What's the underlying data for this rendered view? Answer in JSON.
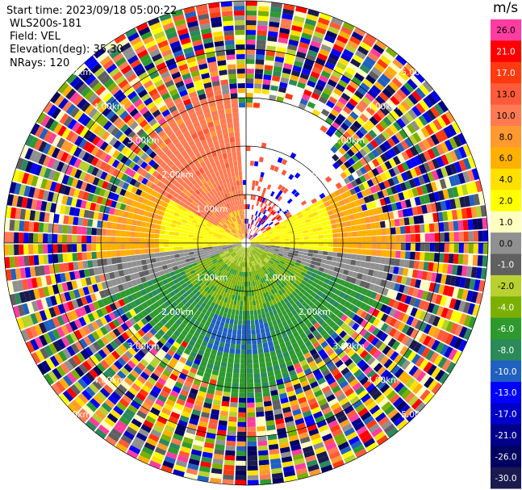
{
  "header": {
    "start_time": "Start time: 2023/09/18 05:00:22",
    "instrument": "WLS200s-181",
    "field": "Field: VEL",
    "elevation": "Elevation(deg): 35.30",
    "nrays": "NRays: 120"
  },
  "colorbar": {
    "unit": "m/s",
    "ticks": [
      "26.0",
      "21.0",
      "17.0",
      "13.0",
      "10.0",
      "8.0",
      "6.0",
      "4.0",
      "2.0",
      "1.0",
      "0.0",
      "-1.0",
      "-2.0",
      "-4.0",
      "-6.0",
      "-8.0",
      "-10.0",
      "-13.0",
      "-17.0",
      "-21.0",
      "-26.0",
      "-30.0"
    ],
    "colors": [
      "#ff3ca0",
      "#ff0000",
      "#ff3a10",
      "#ff5a3a",
      "#ff7a52",
      "#ff9a30",
      "#ffb000",
      "#ffe000",
      "#ffff00",
      "#ffffc0",
      "#909090",
      "#606060",
      "#b8d030",
      "#7cb000",
      "#2e9a2e",
      "#2a8a5a",
      "#2060c0",
      "#0000ff",
      "#0000c8",
      "#00008a",
      "#000060",
      "#1a1a50"
    ]
  },
  "range_rings": {
    "labels": [
      "1.00km",
      "2.00km",
      "3.00km",
      "4.00km",
      "5.00km"
    ]
  },
  "chart_data": {
    "type": "heatmap",
    "subtype": "polar PPI radial velocity scan",
    "field": "VEL",
    "n_rays": 120,
    "elevation_deg": 35.3,
    "range_rings_km": [
      1,
      2,
      3,
      4,
      5
    ],
    "max_range_km": 5,
    "value_range": [
      -30,
      26
    ],
    "unit": "m/s",
    "description_of_pattern": {
      "north_sector_near_range": "positive ~8 m/s (salmon), ranges 1-3 km, azimuth 300-355 deg",
      "east_west_near_range": "positive 2-4 m/s (yellow/orange) near 60-120 and 240-300 deg",
      "south_sector_near_range": "negative -4 to -8 m/s (green/blue), ranges 1-3 km, azimuth 110-250 deg",
      "far_range": "noise across full colour scale beyond ~3 km"
    }
  }
}
